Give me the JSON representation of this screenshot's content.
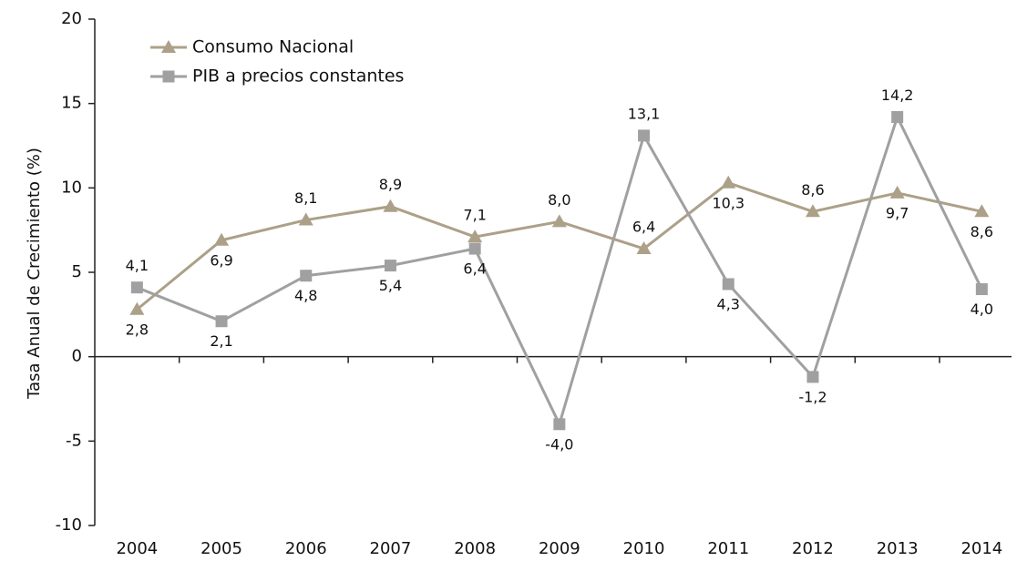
{
  "chart_data": {
    "type": "line",
    "y_label": "Tasa Anual de Crecimiento (%)",
    "categories": [
      "2004",
      "2005",
      "2006",
      "2007",
      "2008",
      "2009",
      "2010",
      "2011",
      "2012",
      "2013",
      "2014"
    ],
    "series": [
      {
        "name": "Consumo Nacional",
        "color": "#aca088",
        "marker": "triangle",
        "values": [
          2.8,
          6.9,
          8.1,
          8.9,
          7.1,
          8.0,
          6.4,
          10.3,
          8.6,
          9.7,
          8.6
        ],
        "value_labels": [
          "2,8",
          "6,9",
          "8,1",
          "8,9",
          "7,1",
          "8,0",
          "6,4",
          "10,3",
          "8,6",
          "9,7",
          "8,6"
        ]
      },
      {
        "name": "PIB a precios constantes",
        "color": "#a0a0a0",
        "marker": "square",
        "values": [
          4.1,
          2.1,
          4.8,
          5.4,
          6.4,
          -4.0,
          13.1,
          4.3,
          -1.2,
          14.2,
          4.0
        ],
        "value_labels": [
          "4,1",
          "2,1",
          "4,8",
          "5,4",
          "6,4",
          "-4,0",
          "13,1",
          "4,3",
          "-1,2",
          "14,2",
          "4,0"
        ]
      }
    ],
    "ylim": [
      -10,
      20
    ],
    "yticks": [
      -10,
      -5,
      0,
      5,
      10,
      15,
      20
    ],
    "legend": "upper left",
    "grid": false
  }
}
